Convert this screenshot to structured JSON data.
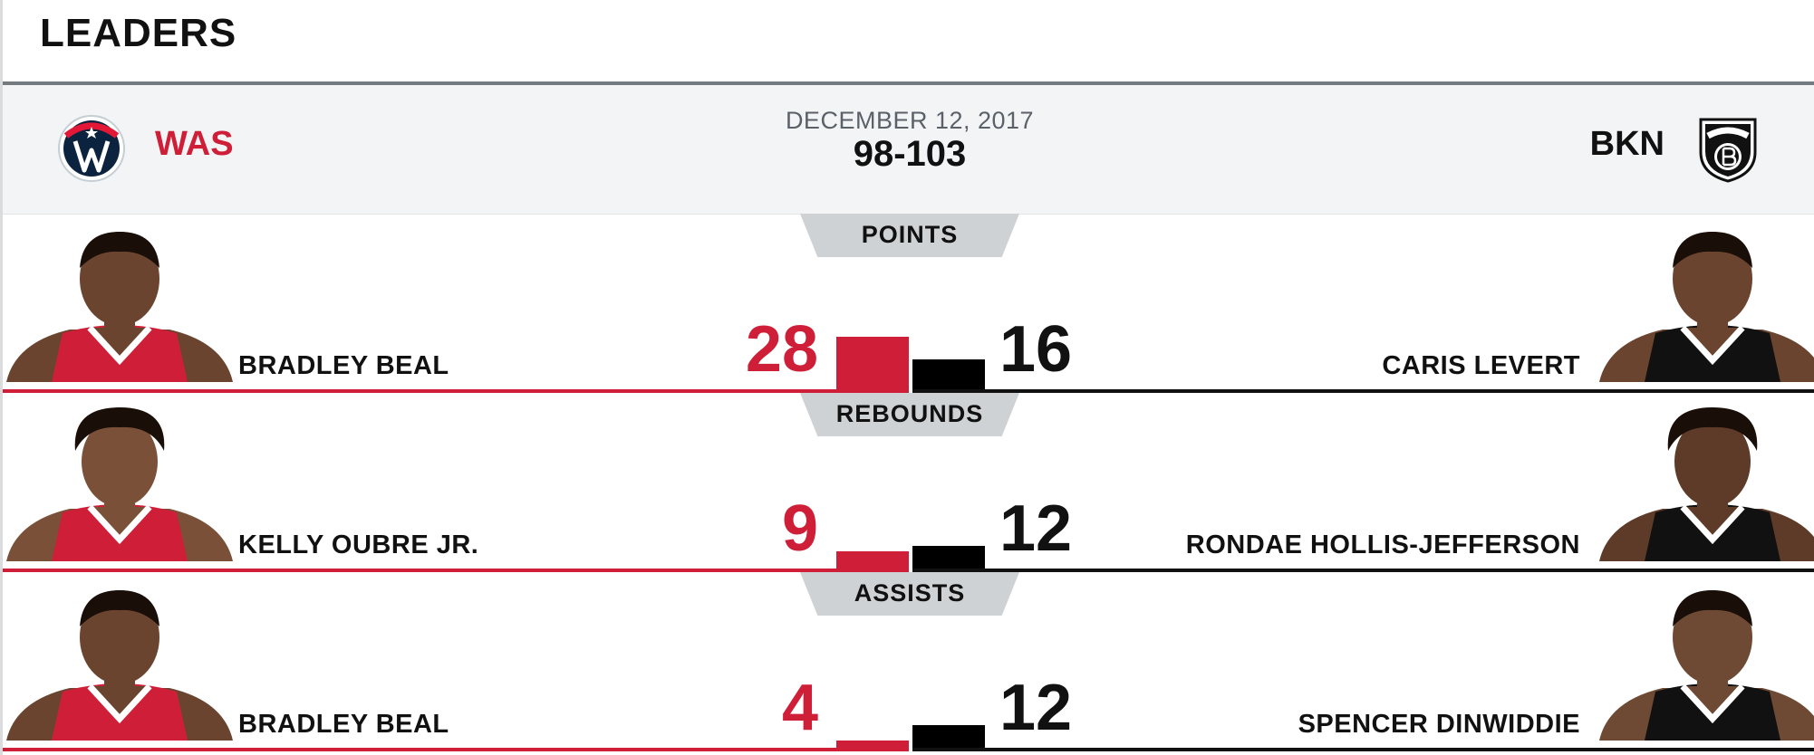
{
  "section_title": "LEADERS",
  "game": {
    "date": "DECEMBER 12, 2017",
    "score": "98-103",
    "away_team": {
      "abbr": "WAS",
      "color": "#cf1f38",
      "logo": "wizards-logo"
    },
    "home_team": {
      "abbr": "BKN",
      "color": "#111111",
      "logo": "nets-logo"
    }
  },
  "stat_scale_max": 28,
  "leaders": [
    {
      "category": "POINTS",
      "away": {
        "name": "BRADLEY BEAL",
        "value": 28
      },
      "home": {
        "name": "CARIS LEVERT",
        "value": 16
      }
    },
    {
      "category": "REBOUNDS",
      "away": {
        "name": "KELLY OUBRE JR.",
        "value": 9
      },
      "home": {
        "name": "RONDAE HOLLIS-JEFFERSON",
        "value": 12
      }
    },
    {
      "category": "ASSISTS",
      "away": {
        "name": "BRADLEY BEAL",
        "value": 4
      },
      "home": {
        "name": "SPENCER DINWIDDIE",
        "value": 12
      }
    }
  ]
}
